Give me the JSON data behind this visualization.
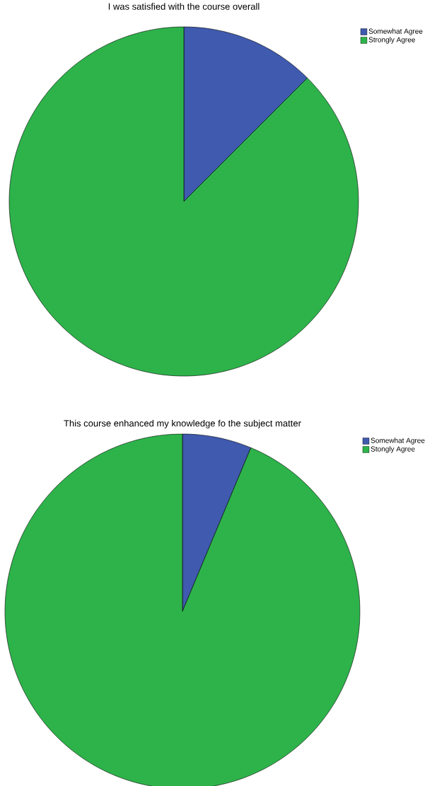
{
  "chart_data": [
    {
      "type": "pie",
      "title": "I was satisfied with the course overall",
      "categories": [
        "Somewhat Agree",
        "Strongly Agree"
      ],
      "values": [
        12.5,
        87.5
      ],
      "colors": [
        "#3f5aae",
        "#2db34a"
      ],
      "legend": "top right"
    },
    {
      "type": "pie",
      "title": "This course enhanced my knowledge fo the subject matter",
      "categories": [
        "Somewhat Agree",
        "Stongly Agree"
      ],
      "values": [
        6.3,
        93.7
      ],
      "colors": [
        "#3f5aae",
        "#2db34a"
      ],
      "legend": "top right"
    }
  ]
}
